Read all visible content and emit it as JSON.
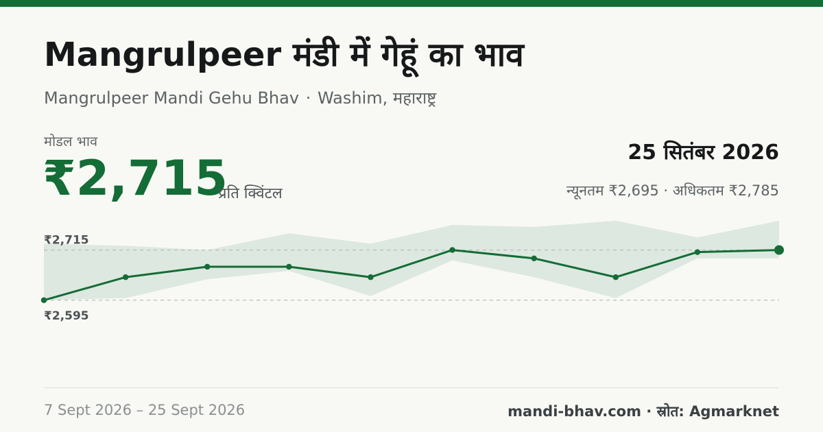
{
  "header": {
    "title": "Mangrulpeer मंडी में गेहूं का भाव",
    "subtitle_en": "Mangrulpeer Mandi Gehu Bhav",
    "subtitle_sep": "·",
    "subtitle_loc": "Washim, महाराष्ट्र"
  },
  "summary": {
    "modal_label": "मोडल भाव",
    "modal_price": "₹2,715",
    "unit": "प्रति क्विंटल",
    "date": "25 सितंबर 2026",
    "range": "न्यूनतम ₹2,695 · अधिकतम ₹2,785"
  },
  "footer": {
    "date_range": "7 Sept 2026 – 25 Sept 2026",
    "source": "mandi-bhav.com · स्रोत: Agmarknet"
  },
  "colors": {
    "accent": "#146c36",
    "band": "#dde8e0",
    "background": "#f8f9f4"
  },
  "chart_data": {
    "type": "line",
    "ref_labels": [
      "₹2,715",
      "₹2,595"
    ],
    "ref_values": [
      2715,
      2595
    ],
    "ylim": [
      2470,
      2775
    ],
    "series": [
      {
        "modal": [
          2595,
          2650,
          2675,
          2675,
          2650,
          2715,
          2695,
          2650,
          2710,
          2715
        ],
        "min": [
          2595,
          2600,
          2645,
          2665,
          2605,
          2690,
          2650,
          2600,
          2695,
          2695
        ],
        "max": [
          2730,
          2725,
          2715,
          2755,
          2730,
          2775,
          2770,
          2785,
          2745,
          2785
        ]
      }
    ]
  }
}
